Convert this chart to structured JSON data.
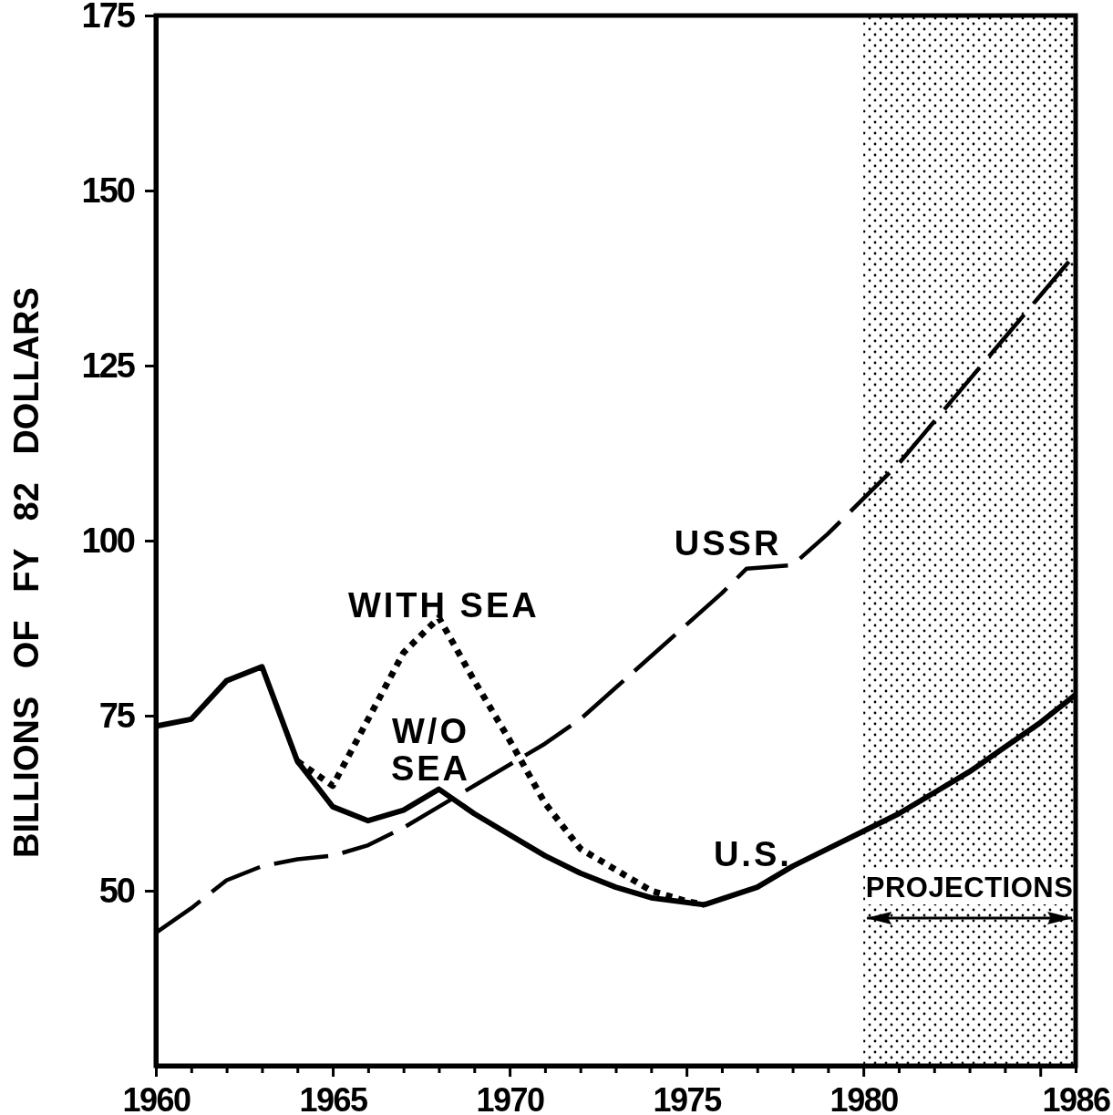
{
  "chart_data": {
    "type": "line",
    "ylabel": "BILLIONS OF FY 82 DOLLARS",
    "xlim": [
      1960,
      1986
    ],
    "xticks": [
      1960,
      {
        "value": 1961,
        "label": null
      },
      {
        "value": 1962,
        "label": null
      },
      {
        "value": 1963,
        "label": null
      },
      {
        "value": 1964,
        "label": null
      },
      1965,
      {
        "value": 1966,
        "label": null
      },
      {
        "value": 1967,
        "label": null
      },
      {
        "value": 1968,
        "label": null
      },
      {
        "value": 1969,
        "label": null
      },
      1970,
      {
        "value": 1971,
        "label": null
      },
      {
        "value": 1972,
        "label": null
      },
      {
        "value": 1973,
        "label": null
      },
      {
        "value": 1974,
        "label": null
      },
      1975,
      {
        "value": 1976,
        "label": null
      },
      {
        "value": 1977,
        "label": null
      },
      {
        "value": 1978,
        "label": null
      },
      {
        "value": 1979,
        "label": null
      },
      1980,
      {
        "value": 1981,
        "label": null
      },
      {
        "value": 1982,
        "label": null
      },
      {
        "value": 1983,
        "label": null
      },
      {
        "value": 1984,
        "label": null
      },
      {
        "value": 1985,
        "label": null
      },
      1986
    ],
    "ylim": [
      25,
      175
    ],
    "yticks": [
      50,
      75,
      100,
      125,
      150,
      175
    ],
    "series": [
      {
        "name": "U.S.",
        "color": "#000000",
        "line_style": "solid",
        "x": [
          1960,
          1961,
          1962,
          1963,
          1964,
          1965,
          1966,
          1967,
          1968,
          1969,
          1970,
          1971,
          1972,
          1973,
          1974,
          1975.5,
          1977,
          1978,
          1979,
          1980,
          1981,
          1982,
          1983,
          1984,
          1985,
          1986
        ],
        "values": [
          73.5,
          74.5,
          80,
          82,
          68.5,
          62,
          60,
          61.5,
          64.5,
          61,
          58,
          55,
          52.5,
          50.5,
          49,
          48,
          50.5,
          53.5,
          56,
          58.5,
          61,
          64,
          67,
          70.5,
          74,
          78
        ]
      },
      {
        "name": "WITH SEA",
        "color": "#000000",
        "line_style": "dotted",
        "x": [
          1964,
          1965,
          1966,
          1967,
          1967.3,
          1968,
          1969,
          1970,
          1971,
          1972,
          1973,
          1974,
          1975,
          1975.5
        ],
        "values": [
          68.5,
          65,
          74.5,
          84,
          85.5,
          89,
          80,
          71.5,
          62.5,
          56,
          53,
          50,
          48.5,
          48
        ]
      },
      {
        "name": "USSR",
        "color": "#000000",
        "line_style": "dashed",
        "x": [
          1960,
          1961,
          1962,
          1963,
          1964,
          1965,
          1966,
          1967,
          1968,
          1969,
          1970,
          1971,
          1972,
          1973,
          1974,
          1975,
          1976,
          1976.7,
          1978,
          1979,
          1980,
          1981,
          1982,
          1983,
          1984,
          1985,
          1986
        ],
        "values": [
          44,
          47.5,
          51.5,
          53.5,
          54.5,
          55,
          56.5,
          59,
          62,
          65,
          68,
          71,
          74.5,
          79,
          83.5,
          88,
          92.5,
          96,
          96.5,
          101,
          106,
          111,
          117,
          123,
          129,
          135,
          141
        ]
      }
    ],
    "bands": [
      {
        "axis": "x",
        "from": 1980,
        "to": 1986,
        "label": "PROJECTIONS"
      }
    ],
    "annotations": [
      {
        "text": "W/O SEA",
        "x": 1968,
        "y": 64.5
      }
    ]
  }
}
